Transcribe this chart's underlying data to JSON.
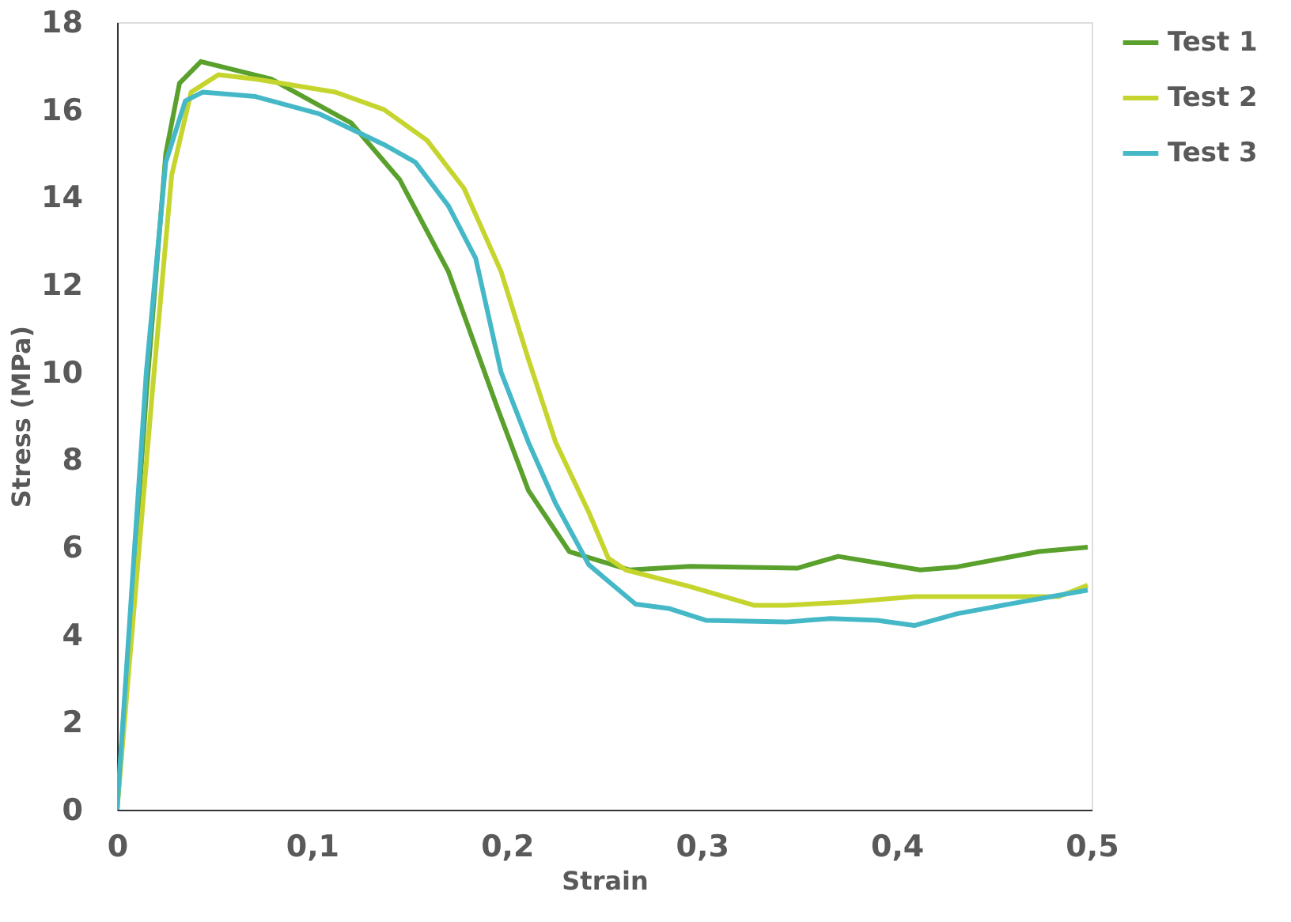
{
  "chart_data": {
    "type": "line",
    "xlabel": "Strain",
    "ylabel": "Stress (MPa)",
    "xlim": [
      0,
      0.5
    ],
    "ylim": [
      0,
      18
    ],
    "xticks": [
      0,
      {
        "value": 0.1,
        "label": "0,1"
      },
      {
        "value": 0.2,
        "label": "0,2"
      },
      {
        "value": 0.3,
        "label": "0,3"
      },
      {
        "value": 0.4,
        "label": "0,4"
      },
      {
        "value": 0.5,
        "label": "0,5"
      }
    ],
    "yticks": [
      0,
      2,
      4,
      6,
      8,
      10,
      12,
      14,
      16,
      18
    ],
    "grid": false,
    "legend": "right",
    "marker": "none",
    "line_style": "solid",
    "series": [
      {
        "name": "Test 1",
        "color": "#5aa02c",
        "x": [
          0,
          0.015,
          0.025,
          0.032,
          0.043,
          0.079,
          0.12,
          0.145,
          0.17,
          0.195,
          0.211,
          0.232,
          0.263,
          0.294,
          0.349,
          0.37,
          0.412,
          0.431,
          0.473,
          0.498
        ],
        "values": [
          0,
          9.5,
          15.0,
          16.6,
          17.1,
          16.7,
          15.7,
          14.4,
          12.3,
          9.2,
          7.3,
          5.9,
          5.48,
          5.56,
          5.52,
          5.79,
          5.48,
          5.55,
          5.9,
          6.0
        ]
      },
      {
        "name": "Test 2",
        "color": "#c5d52e",
        "x": [
          0,
          0.018,
          0.028,
          0.038,
          0.052,
          0.071,
          0.112,
          0.137,
          0.159,
          0.178,
          0.197,
          0.211,
          0.225,
          0.242,
          0.252,
          0.261,
          0.294,
          0.327,
          0.343,
          0.376,
          0.409,
          0.445,
          0.483,
          0.498
        ],
        "values": [
          0,
          9.5,
          14.5,
          16.4,
          16.8,
          16.7,
          16.4,
          16.0,
          15.3,
          14.2,
          12.3,
          10.3,
          8.4,
          6.8,
          5.75,
          5.48,
          5.1,
          4.67,
          4.67,
          4.75,
          4.87,
          4.87,
          4.87,
          5.13
        ]
      },
      {
        "name": "Test 3",
        "color": "#45b8c8",
        "x": [
          0,
          0.015,
          0.025,
          0.035,
          0.044,
          0.071,
          0.104,
          0.137,
          0.153,
          0.17,
          0.184,
          0.197,
          0.211,
          0.225,
          0.242,
          0.266,
          0.283,
          0.302,
          0.343,
          0.366,
          0.39,
          0.409,
          0.431,
          0.459,
          0.498
        ],
        "values": [
          0,
          10,
          14.8,
          16.2,
          16.4,
          16.3,
          15.9,
          15.2,
          14.8,
          13.8,
          12.6,
          10.0,
          8.4,
          7.0,
          5.6,
          4.7,
          4.6,
          4.33,
          4.29,
          4.37,
          4.33,
          4.21,
          4.48,
          4.71,
          5.02
        ]
      }
    ]
  }
}
